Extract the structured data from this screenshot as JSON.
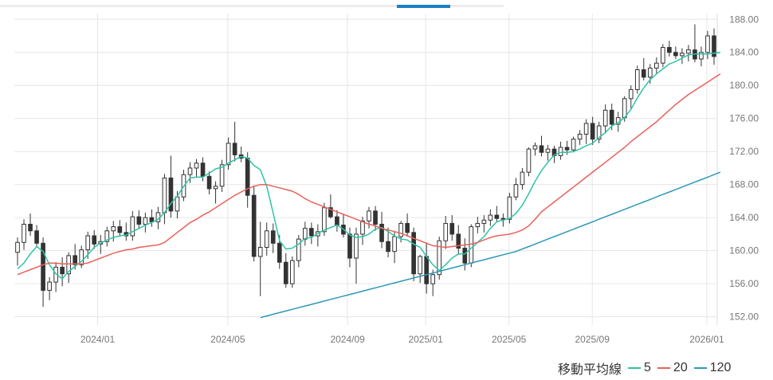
{
  "chart_data": {
    "type": "candlestick",
    "y_ticks": [
      "188.00",
      "184.00",
      "180.00",
      "176.00",
      "172.00",
      "168.00",
      "164.00",
      "160.00",
      "156.00",
      "152.00"
    ],
    "x_ticks": [
      "2024/01",
      "2024/05",
      "2024/09",
      "2025/01",
      "2025/05",
      "2025/09",
      "2026/01"
    ],
    "ylim": [
      151.0,
      188.7
    ],
    "grid": true,
    "legend_position": "bottom-right",
    "legend": {
      "title": "移動平均線",
      "entries": [
        {
          "label": "5",
          "color": "#2ec4a5"
        },
        {
          "label": "20",
          "color": "#e8625a"
        },
        {
          "label": "120",
          "color": "#2e98b8"
        }
      ]
    },
    "candles": [
      [
        159.8,
        161.6,
        158.2,
        161.0
      ],
      [
        161.0,
        163.8,
        160.1,
        163.2
      ],
      [
        163.2,
        164.5,
        161.8,
        162.4
      ],
      [
        162.4,
        163.1,
        160.5,
        160.9
      ],
      [
        160.9,
        161.6,
        153.2,
        155.2
      ],
      [
        155.2,
        156.8,
        154.0,
        156.2
      ],
      [
        156.2,
        158.6,
        155.0,
        158.0
      ],
      [
        158.0,
        159.2,
        155.7,
        157.2
      ],
      [
        157.2,
        159.8,
        156.1,
        159.4
      ],
      [
        159.4,
        160.8,
        157.7,
        158.3
      ],
      [
        158.3,
        160.6,
        157.9,
        160.1
      ],
      [
        160.1,
        162.3,
        159.0,
        161.8
      ],
      [
        161.8,
        162.5,
        160.2,
        160.8
      ],
      [
        160.8,
        161.9,
        159.6,
        161.1
      ],
      [
        161.1,
        162.9,
        160.5,
        162.4
      ],
      [
        162.4,
        163.6,
        161.1,
        162.9
      ],
      [
        162.9,
        163.7,
        161.7,
        162.2
      ],
      [
        162.2,
        163.4,
        161.2,
        161.8
      ],
      [
        161.8,
        164.8,
        161.2,
        164.1
      ],
      [
        164.1,
        164.9,
        162.6,
        163.2
      ],
      [
        163.2,
        164.6,
        162.2,
        164.0
      ],
      [
        164.0,
        165.0,
        162.9,
        163.5
      ],
      [
        163.5,
        165.3,
        162.6,
        164.6
      ],
      [
        164.6,
        169.3,
        163.2,
        168.8
      ],
      [
        168.8,
        171.5,
        164.0,
        164.8
      ],
      [
        164.8,
        167.2,
        163.9,
        166.5
      ],
      [
        166.5,
        169.8,
        166.0,
        169.2
      ],
      [
        169.2,
        170.7,
        168.2,
        170.0
      ],
      [
        170.0,
        171.1,
        168.9,
        170.6
      ],
      [
        170.6,
        171.3,
        168.4,
        169.0
      ],
      [
        169.0,
        169.6,
        166.8,
        167.5
      ],
      [
        167.5,
        168.4,
        165.7,
        167.8
      ],
      [
        167.8,
        171.0,
        167.1,
        170.4
      ],
      [
        170.4,
        173.7,
        169.8,
        173.0
      ],
      [
        173.0,
        175.6,
        170.8,
        171.6
      ],
      [
        171.6,
        172.6,
        170.7,
        171.2
      ],
      [
        171.2,
        171.9,
        165.2,
        166.7
      ],
      [
        166.7,
        167.9,
        158.7,
        159.3
      ],
      [
        159.3,
        163.5,
        154.5,
        160.4
      ],
      [
        160.4,
        163.4,
        159.4,
        162.4
      ],
      [
        162.4,
        163.3,
        159.7,
        160.9
      ],
      [
        160.9,
        161.9,
        157.8,
        158.6
      ],
      [
        158.6,
        159.7,
        155.5,
        156.0
      ],
      [
        156.0,
        159.3,
        155.5,
        158.8
      ],
      [
        158.8,
        161.9,
        158.0,
        161.4
      ],
      [
        161.4,
        163.5,
        160.6,
        162.7
      ],
      [
        162.7,
        163.4,
        160.8,
        161.8
      ],
      [
        161.8,
        163.2,
        160.5,
        162.3
      ],
      [
        162.3,
        165.8,
        161.8,
        165.2
      ],
      [
        165.2,
        166.8,
        163.9,
        164.1
      ],
      [
        164.1,
        164.9,
        162.3,
        163.1
      ],
      [
        163.1,
        164.4,
        161.6,
        162.0
      ],
      [
        162.0,
        162.8,
        158.0,
        159.1
      ],
      [
        159.1,
        162.8,
        156.0,
        162.0
      ],
      [
        162.0,
        164.1,
        160.7,
        163.6
      ],
      [
        163.6,
        165.3,
        162.7,
        164.8
      ],
      [
        164.8,
        165.4,
        162.4,
        163.2
      ],
      [
        163.2,
        164.7,
        160.3,
        161.1
      ],
      [
        161.1,
        162.8,
        159.2,
        159.9
      ],
      [
        159.9,
        162.4,
        158.5,
        161.7
      ],
      [
        161.7,
        163.6,
        161.0,
        163.3
      ],
      [
        163.3,
        164.5,
        161.7,
        162.2
      ],
      [
        162.2,
        162.8,
        156.3,
        157.2
      ],
      [
        157.2,
        159.5,
        156.1,
        159.3
      ],
      [
        159.3,
        161.0,
        154.8,
        156.0
      ],
      [
        156.0,
        157.7,
        154.5,
        157.1
      ],
      [
        157.1,
        161.7,
        156.5,
        161.2
      ],
      [
        161.2,
        164.2,
        160.2,
        163.3
      ],
      [
        163.3,
        164.3,
        161.2,
        162.0
      ],
      [
        162.0,
        163.1,
        159.5,
        160.3
      ],
      [
        160.3,
        161.5,
        157.6,
        158.5
      ],
      [
        158.5,
        163.2,
        158.0,
        162.9
      ],
      [
        162.9,
        164.1,
        162.1,
        163.3
      ],
      [
        163.3,
        164.3,
        162.2,
        163.7
      ],
      [
        163.7,
        165.0,
        163.0,
        164.3
      ],
      [
        164.3,
        165.4,
        163.5,
        163.9
      ],
      [
        163.9,
        164.5,
        162.9,
        163.8
      ],
      [
        163.8,
        167.0,
        163.3,
        166.5
      ],
      [
        166.5,
        168.8,
        166.1,
        168.0
      ],
      [
        168.0,
        170.0,
        167.4,
        169.5
      ],
      [
        169.5,
        172.5,
        169.0,
        172.3
      ],
      [
        172.3,
        173.1,
        171.5,
        172.7
      ],
      [
        172.7,
        173.9,
        171.4,
        171.9
      ],
      [
        171.9,
        172.8,
        170.9,
        172.3
      ],
      [
        172.3,
        172.7,
        170.6,
        171.5
      ],
      [
        171.5,
        173.2,
        171.0,
        172.5
      ],
      [
        172.5,
        173.3,
        171.6,
        172.2
      ],
      [
        172.2,
        173.8,
        171.9,
        173.5
      ],
      [
        173.5,
        174.6,
        172.8,
        174.1
      ],
      [
        174.1,
        175.9,
        172.9,
        175.4
      ],
      [
        175.4,
        176.2,
        172.8,
        173.5
      ],
      [
        173.5,
        175.6,
        173.0,
        175.1
      ],
      [
        175.1,
        177.7,
        174.2,
        177.0
      ],
      [
        177.0,
        177.8,
        174.6,
        175.3
      ],
      [
        175.3,
        176.8,
        174.4,
        176.1
      ],
      [
        176.1,
        178.7,
        175.6,
        178.4
      ],
      [
        178.4,
        180.0,
        177.2,
        179.5
      ],
      [
        179.5,
        182.4,
        179.0,
        181.9
      ],
      [
        181.9,
        183.3,
        180.6,
        181.0
      ],
      [
        181.0,
        182.6,
        180.2,
        182.1
      ],
      [
        182.1,
        183.4,
        181.4,
        182.7
      ],
      [
        182.7,
        185.0,
        182.2,
        184.6
      ],
      [
        184.6,
        185.4,
        183.5,
        184.0
      ],
      [
        184.0,
        184.7,
        183.2,
        183.6
      ],
      [
        183.6,
        184.5,
        182.6,
        183.9
      ],
      [
        183.9,
        184.9,
        182.9,
        184.3
      ],
      [
        184.3,
        187.4,
        182.8,
        183.2
      ],
      [
        183.2,
        184.7,
        182.3,
        184.0
      ],
      [
        184.0,
        186.6,
        183.2,
        186.0
      ],
      [
        186.0,
        186.9,
        182.5,
        183.5
      ]
    ],
    "series": [
      {
        "name": "5",
        "color": "#2ec4a5",
        "values": [
          157.8,
          158.5,
          159.6,
          160.5,
          159.9,
          158.3,
          157.2,
          156.6,
          157.5,
          158.1,
          158.7,
          159.5,
          160.4,
          160.9,
          161.3,
          161.6,
          161.8,
          161.9,
          162.3,
          162.7,
          163.1,
          163.4,
          163.8,
          164.6,
          165.7,
          166.6,
          167.8,
          168.8,
          168.9,
          168.9,
          169.4,
          169.9,
          170.1,
          170.6,
          171.0,
          171.4,
          171.2,
          170.3,
          169.8,
          167.8,
          164.6,
          161.2,
          160.2,
          160.3,
          160.8,
          161.5,
          161.6,
          162.1,
          162.5,
          162.8,
          163.1,
          162.6,
          161.9,
          161.6,
          161.7,
          162.0,
          162.6,
          162.8,
          162.3,
          161.8,
          161.4,
          161.3,
          160.8,
          160.4,
          159.3,
          158.3,
          157.6,
          158.3,
          159.1,
          159.6,
          159.6,
          160.3,
          161.0,
          161.7,
          162.7,
          163.5,
          163.7,
          163.9,
          164.5,
          165.5,
          166.9,
          168.4,
          169.7,
          170.7,
          171.6,
          171.9,
          171.9,
          172.0,
          172.3,
          172.7,
          173.0,
          173.7,
          174.3,
          175.1,
          175.5,
          176.1,
          177.1,
          178.5,
          179.7,
          180.7,
          181.4,
          182.0,
          182.6,
          182.9,
          183.3,
          183.7,
          183.8,
          183.8,
          183.8,
          183.9,
          184.0
        ]
      },
      {
        "name": "20",
        "color": "#e8625a",
        "values": [
          157.1,
          157.4,
          157.7,
          158.0,
          158.3,
          158.5,
          158.5,
          158.4,
          158.4,
          158.4,
          158.4,
          158.5,
          158.8,
          159.1,
          159.4,
          159.7,
          159.9,
          160.1,
          160.2,
          160.4,
          160.5,
          160.6,
          160.7,
          161.0,
          161.6,
          162.2,
          162.8,
          163.4,
          163.8,
          164.3,
          164.7,
          165.2,
          165.7,
          166.2,
          166.7,
          167.1,
          167.5,
          167.8,
          168.0,
          168.0,
          167.8,
          167.6,
          167.4,
          167.2,
          166.8,
          166.3,
          165.9,
          165.6,
          165.3,
          165.0,
          164.7,
          164.4,
          164.1,
          163.8,
          163.5,
          163.2,
          163.0,
          162.7,
          162.5,
          162.3,
          162.1,
          161.8,
          161.5,
          161.2,
          160.9,
          160.6,
          160.5,
          160.4,
          160.5,
          160.6,
          160.7,
          160.8,
          161.0,
          161.3,
          161.6,
          161.8,
          161.9,
          162.0,
          162.2,
          162.5,
          163.0,
          163.8,
          164.7,
          165.3,
          165.9,
          166.5,
          167.1,
          167.7,
          168.3,
          168.9,
          169.5,
          170.1,
          170.7,
          171.3,
          171.9,
          172.5,
          173.2,
          173.8,
          174.4,
          175.0,
          175.6,
          176.3,
          177.0,
          177.7,
          178.3,
          178.9,
          179.4,
          179.9,
          180.4,
          180.9,
          181.4
        ]
      },
      {
        "name": "120",
        "color": "#2e98b8",
        "values": [
          null,
          null,
          null,
          null,
          null,
          null,
          null,
          null,
          null,
          null,
          null,
          null,
          null,
          null,
          null,
          null,
          null,
          null,
          null,
          null,
          null,
          null,
          null,
          null,
          null,
          null,
          null,
          null,
          null,
          null,
          null,
          null,
          null,
          null,
          null,
          null,
          null,
          null,
          151.9,
          152.1,
          152.3,
          152.5,
          152.7,
          152.9,
          153.1,
          153.3,
          153.5,
          153.7,
          153.9,
          154.1,
          154.3,
          154.5,
          154.7,
          154.9,
          155.1,
          155.3,
          155.5,
          155.7,
          155.9,
          156.1,
          156.3,
          156.5,
          156.7,
          156.9,
          157.1,
          157.3,
          157.5,
          157.7,
          157.9,
          158.1,
          158.3,
          158.5,
          158.7,
          158.9,
          159.1,
          159.3,
          159.5,
          159.7,
          159.9,
          160.2,
          160.5,
          160.8,
          161.1,
          161.4,
          161.7,
          162.0,
          162.3,
          162.6,
          162.9,
          163.2,
          163.5,
          163.8,
          164.1,
          164.4,
          164.7,
          165.0,
          165.3,
          165.6,
          165.9,
          166.2,
          166.5,
          166.8,
          167.1,
          167.4,
          167.7,
          168.0,
          168.3,
          168.6,
          168.9,
          169.2,
          169.5
        ]
      }
    ]
  }
}
